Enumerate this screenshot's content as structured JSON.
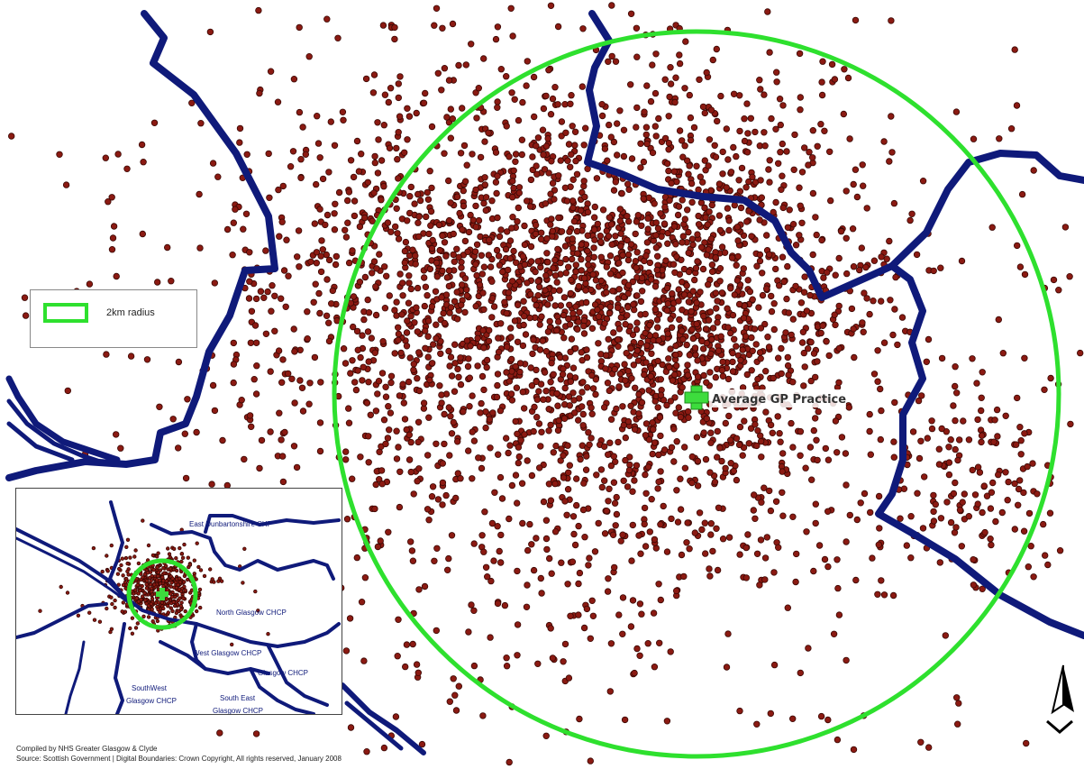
{
  "map": {
    "practice_label": "Average GP Practice",
    "legend": {
      "label": "2km radius",
      "swatch_color": "#2ee02e"
    },
    "colors": {
      "boundary": "#0f1a7a",
      "patient_dot": "#8b1a12",
      "radius_circle": "#2ee02e",
      "practice_marker": "#3ddc3d"
    },
    "icons": {
      "practice": "plus-icon",
      "north_arrow": "north-arrow-icon"
    },
    "inset": {
      "regions": [
        {
          "label": "East Dunbartonshire CHP"
        },
        {
          "label": "North Glasgow CHCP"
        },
        {
          "label": "West Glasgow CHCP"
        },
        {
          "label": "Glasgow CHCP"
        },
        {
          "label": "SouthWest"
        },
        {
          "label": "Glasgow CHCP"
        },
        {
          "label": "South East"
        },
        {
          "label": "Glasgow CHCP"
        }
      ]
    },
    "credits": {
      "compiled_by": "Compiled by NHS Greater Glasgow & Clyde",
      "source": "Source: Scottish Government | Digital Boundaries: Crown Copyright, All rights reserved, January 2008"
    }
  }
}
